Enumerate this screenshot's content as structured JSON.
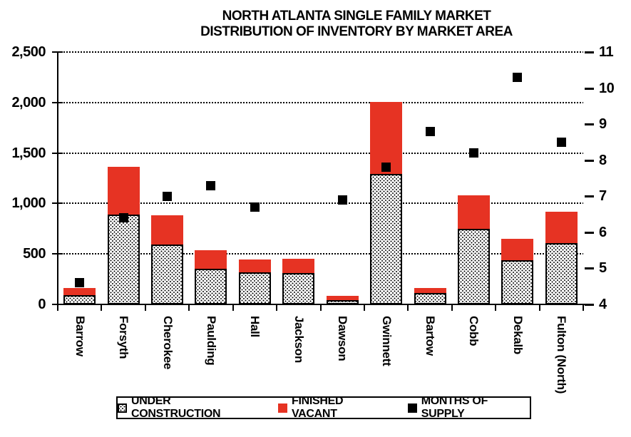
{
  "chart_data": {
    "type": "bar",
    "subtype": "stacked-bars-with-point-series",
    "title": "NORTH ATLANTA SINGLE FAMILY MARKET",
    "subtitle": "DISTRIBUTION OF INVENTORY BY MARKET AREA",
    "categories": [
      "Barrow",
      "Forsyth",
      "Cherokee",
      "Paulding",
      "Hall",
      "Jackson",
      "Dawson",
      "Gwinnett",
      "Bartow",
      "Cobb",
      "Dekalb",
      "Fulton (North)"
    ],
    "series": [
      {
        "name": "UNDER CONSTRUCTION",
        "render": "bar",
        "stack": "inventory",
        "fill": "white-with-black-dot-pattern",
        "values": [
          95,
          890,
          590,
          355,
          315,
          310,
          45,
          1290,
          115,
          750,
          440,
          605
        ]
      },
      {
        "name": "FINISHED VACANT",
        "render": "bar",
        "stack": "inventory",
        "fill": "#e63323",
        "values": [
          70,
          470,
          290,
          185,
          125,
          140,
          40,
          710,
          50,
          330,
          210,
          310
        ]
      },
      {
        "name": "MONTHS OF SUPPLY",
        "render": "point",
        "marker": "black-square",
        "fill": "#000000",
        "axis": "right",
        "values": [
          4.6,
          6.4,
          7.0,
          7.3,
          6.7,
          null,
          6.9,
          7.8,
          8.8,
          8.2,
          10.3,
          8.5
        ]
      }
    ],
    "left_axis": {
      "min": 0,
      "max": 2500,
      "step": 500,
      "tick_labels": [
        "0",
        "500",
        "1,000",
        "1,500",
        "2,000",
        "2,500"
      ]
    },
    "right_axis": {
      "min": 4,
      "max": 11,
      "step": 1,
      "tick_labels": [
        "4",
        "5",
        "6",
        "7",
        "8",
        "9",
        "10",
        "11"
      ]
    },
    "grid": "horizontal-dotted-black",
    "legend_position": "bottom-center-boxed",
    "colors": {
      "finished_vacant": "#e63323",
      "months_of_supply": "#000000",
      "axis": "#000000",
      "background": "#ffffff"
    }
  },
  "legend": {
    "items": [
      {
        "label": "UNDER CONSTRUCTION",
        "swatch": "dotted-pattern-square"
      },
      {
        "label": "FINISHED VACANT",
        "swatch": "red-square"
      },
      {
        "label": "MONTHS OF SUPPLY",
        "swatch": "black-square"
      }
    ]
  }
}
